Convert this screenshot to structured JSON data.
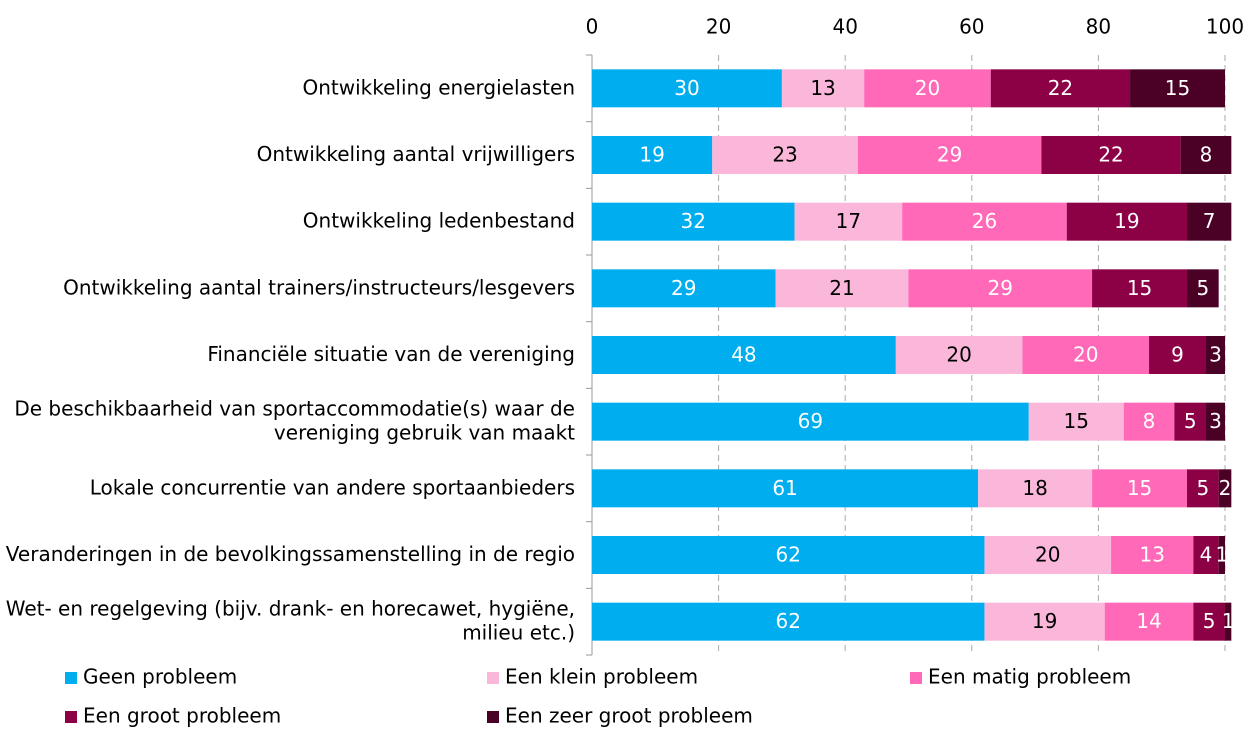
{
  "chart_data": {
    "type": "stacked-barh",
    "categories": [
      "Ontwikkeling energielasten",
      "Ontwikkeling aantal vrijwilligers",
      "Ontwikkeling ledenbestand",
      "Ontwikkeling aantal trainers/instructeurs/lesgevers",
      "Financiële situatie van de vereniging",
      "De beschikbaarheid van sportaccommodatie(s) waar de vereniging gebruik van maakt",
      "Lokale concurrentie van andere sportaanbieders",
      "Veranderingen in de bevolkingssamenstelling in de regio",
      "Wet- en regelgeving (bijv. drank- en horecawet, hygiëne, milieu etc.)"
    ],
    "series": [
      {
        "name": "Geen probleem",
        "color": "#00aeef",
        "values": [
          30,
          19,
          32,
          29,
          48,
          69,
          61,
          62,
          62
        ]
      },
      {
        "name": "Een klein probleem",
        "color": "#fbb7da",
        "values": [
          13,
          23,
          17,
          21,
          20,
          15,
          18,
          20,
          19
        ]
      },
      {
        "name": "Een matig probleem",
        "color": "#ff69b8",
        "values": [
          20,
          29,
          26,
          29,
          20,
          8,
          15,
          13,
          14
        ]
      },
      {
        "name": "Een groot probleem",
        "color": "#8c0046",
        "values": [
          22,
          22,
          19,
          15,
          9,
          5,
          5,
          4,
          5
        ]
      },
      {
        "name": "Een zeer groot probleem",
        "color": "#4b0026",
        "values": [
          15,
          8,
          7,
          5,
          3,
          3,
          2,
          1,
          1
        ]
      }
    ],
    "xlim": [
      0,
      100
    ],
    "xticks": [
      0,
      20,
      40,
      60,
      80,
      100
    ],
    "grid": true,
    "legend": "bottom"
  }
}
